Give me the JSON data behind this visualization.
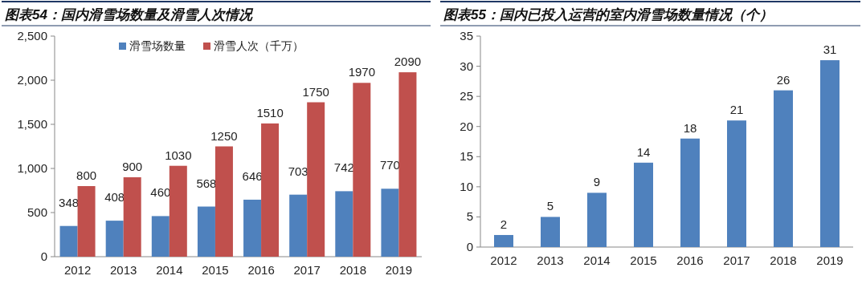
{
  "chart_data": [
    {
      "type": "bar",
      "title": "图表54：国内滑雪场数量及滑雪人次情况",
      "categories": [
        "2012",
        "2013",
        "2014",
        "2015",
        "2016",
        "2017",
        "2018",
        "2019"
      ],
      "series": [
        {
          "name": "滑雪场数量",
          "color": "#4f81bd",
          "values": [
            348,
            408,
            460,
            568,
            646,
            703,
            742,
            770
          ]
        },
        {
          "name": "滑雪人次（千万）",
          "color": "#c0504d",
          "values": [
            800,
            900,
            1030,
            1250,
            1510,
            1750,
            1970,
            2090
          ]
        }
      ],
      "ylim": [
        0,
        2500
      ],
      "yticks": [
        0,
        500,
        {
          "value": 1000,
          "label": "1,000"
        },
        {
          "value": 1500,
          "label": "1,500"
        },
        {
          "value": 2000,
          "label": "2,000"
        },
        {
          "value": 2500,
          "label": "2,500"
        }
      ],
      "grid": false,
      "legend": "top",
      "data_labels": true
    },
    {
      "type": "bar",
      "title": "图表55：国内已投入运营的室内滑雪场数量情况（个）",
      "categories": [
        "2012",
        "2013",
        "2014",
        "2015",
        "2016",
        "2017",
        "2018",
        "2019"
      ],
      "series": [
        {
          "color": "#4f81bd",
          "values": [
            2,
            5,
            9,
            14,
            18,
            21,
            26,
            31
          ]
        }
      ],
      "ylim": [
        0,
        35
      ],
      "yticks": [
        0,
        5,
        10,
        15,
        20,
        25,
        30,
        35
      ],
      "grid": false,
      "data_labels": true
    }
  ]
}
